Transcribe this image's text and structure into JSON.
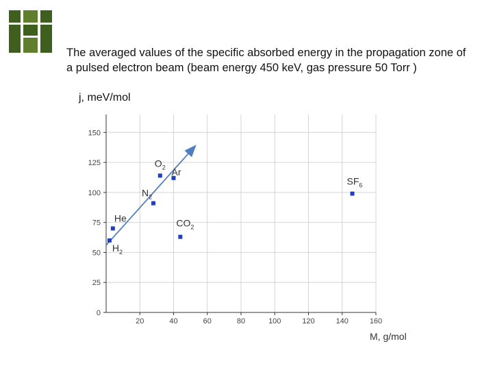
{
  "logo": {
    "name": "green-grid-logo",
    "color": "#3f5f1f"
  },
  "slide": {
    "title": "The averaged values of the specific absorbed energy in the propagation zone of a pulsed electron beam (beam energy 450 keV, gas pressure 50 Torr )"
  },
  "chart_data": {
    "type": "scatter",
    "title": "The averaged values of the specific absorbed energy in the propagation zone of a pulsed electron beam (beam energy 450 keV, gas pressure 50 Torr )",
    "ylabel": "j, meV/mol",
    "xlabel": "M, g/mol",
    "xlim": [
      0,
      160
    ],
    "ylim": [
      0,
      165
    ],
    "xticks": [
      20,
      40,
      60,
      80,
      100,
      120,
      140,
      160
    ],
    "yticks": [
      0,
      25,
      50,
      75,
      100,
      125,
      150
    ],
    "grid": true,
    "marker_color": "#1f3fbf",
    "points": [
      {
        "label": "H",
        "sub": "2",
        "x": 2,
        "y": 60
      },
      {
        "label": "He",
        "sub": "",
        "x": 4,
        "y": 70
      },
      {
        "label": "N",
        "sub": "2",
        "x": 28,
        "y": 91
      },
      {
        "label": "O",
        "sub": "2",
        "x": 32,
        "y": 114
      },
      {
        "label": "Ar",
        "sub": "",
        "x": 40,
        "y": 112
      },
      {
        "label": "CO",
        "sub": "2",
        "x": 44,
        "y": 63
      },
      {
        "label": "SF",
        "sub": "6",
        "x": 146,
        "y": 99
      }
    ],
    "trend_line": {
      "x": [
        0,
        53
      ],
      "y": [
        56,
        139
      ],
      "color": "#4f7fbf"
    }
  }
}
